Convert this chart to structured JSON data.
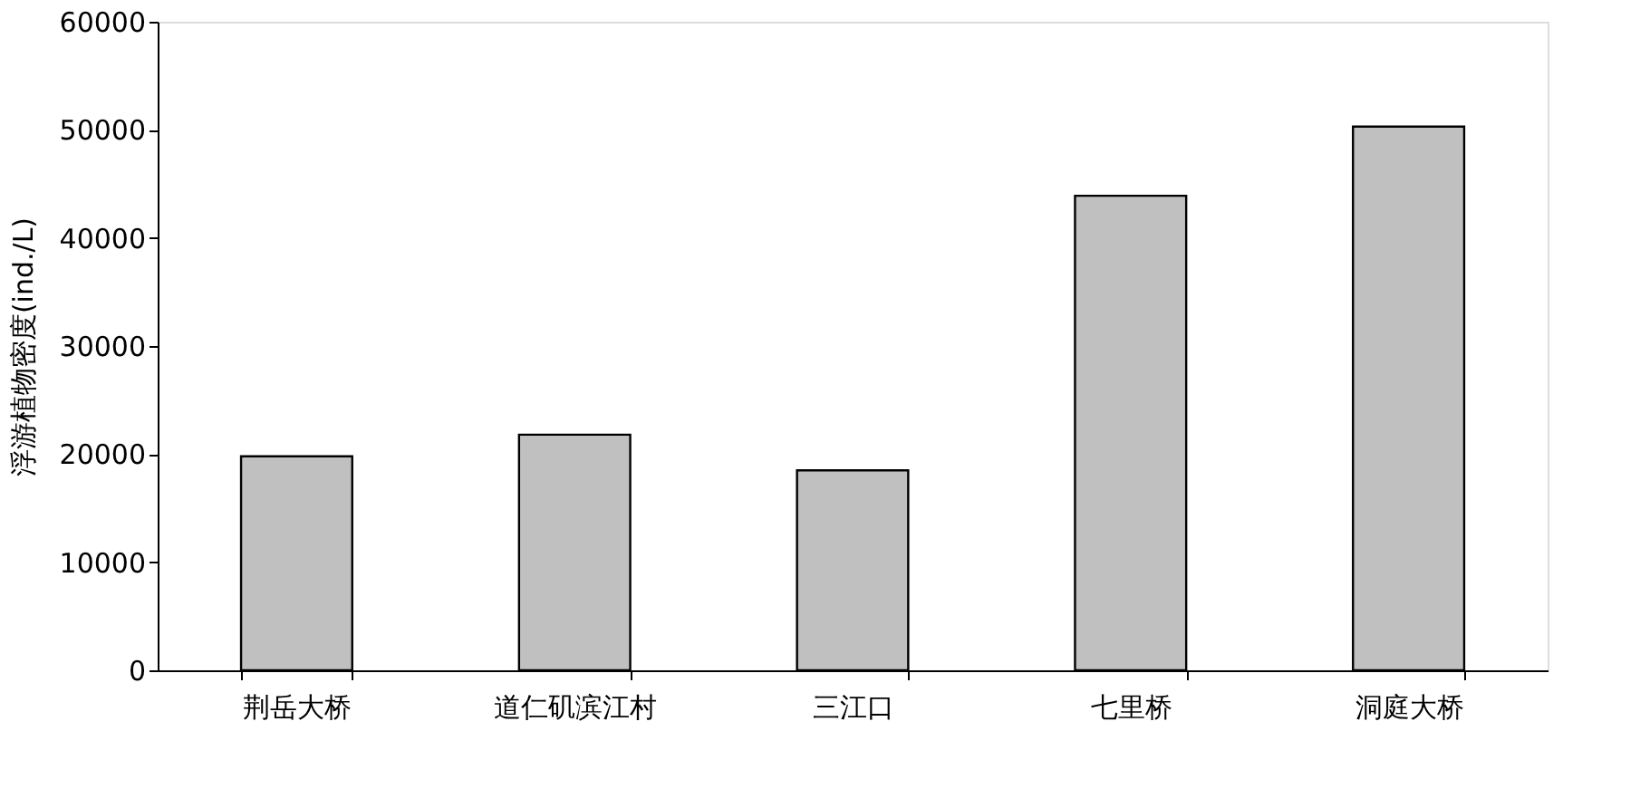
{
  "chart_data": {
    "type": "bar",
    "ylabel": "浮游植物密度(ind./L)",
    "categories": [
      "荆岳大桥",
      "道仁矶滨江村",
      "三江口",
      "七里桥",
      "洞庭大桥"
    ],
    "values": [
      19800,
      21800,
      18500,
      43900,
      50300
    ],
    "color": "#c0c0c0",
    "ylim": [
      0,
      60000
    ],
    "yticks": [
      0,
      10000,
      20000,
      30000,
      40000,
      50000,
      60000
    ],
    "grid": false
  }
}
